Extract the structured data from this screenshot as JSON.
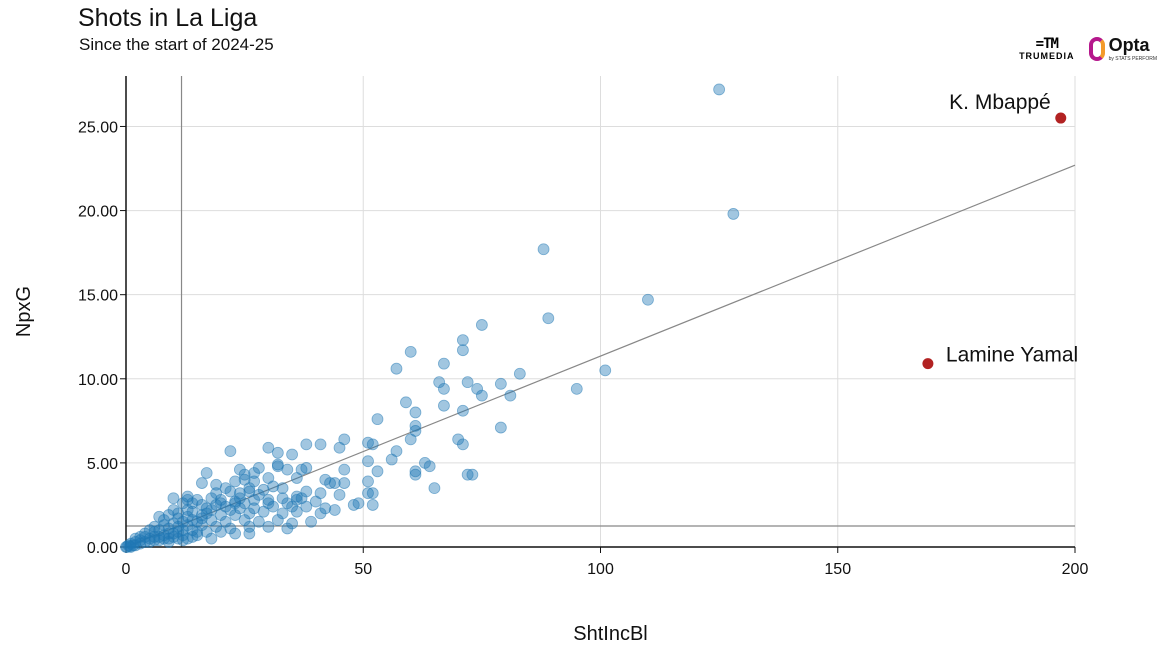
{
  "header": {
    "title": "Shots in La Liga",
    "subtitle": "Since the start of 2024-25"
  },
  "logos": {
    "trumedia_mark": "=TM",
    "trumedia_name": "TRUMEDIA",
    "opta_name": "Opta",
    "opta_sub": "by STATS PERFORM"
  },
  "colors": {
    "dots": "#1f77b4",
    "highlight": "#b22222",
    "line": "#888888"
  },
  "chart_data": {
    "type": "scatter",
    "title": "Shots in La Liga",
    "subtitle": "Since the start of 2024-25",
    "xlabel": "ShtIncBl",
    "ylabel": "NpxG",
    "xlim": [
      0,
      200
    ],
    "ylim": [
      0,
      28
    ],
    "xticks": [
      0,
      50,
      100,
      150,
      200
    ],
    "yticks": [
      0,
      5,
      10,
      15,
      20,
      25
    ],
    "ytick_labels": [
      "0.00",
      "5.00",
      "10.00",
      "15.00",
      "20.00",
      "25.00"
    ],
    "grid": true,
    "reference_lines": {
      "mean_x": 11.7,
      "mean_y": 1.25,
      "trend": {
        "x0": 0,
        "y0": 0,
        "x1": 200,
        "y1": 22.7
      }
    },
    "highlighted": [
      {
        "label": "K. Mbappé",
        "x": 197,
        "y": 25.5
      },
      {
        "label": "Lamine Yamal",
        "x": 169,
        "y": 10.9
      }
    ],
    "points": [
      [
        125,
        27.2
      ],
      [
        128,
        19.8
      ],
      [
        88,
        17.7
      ],
      [
        110,
        14.7
      ],
      [
        89,
        13.6
      ],
      [
        75,
        13.2
      ],
      [
        71,
        12.3
      ],
      [
        71,
        11.7
      ],
      [
        60,
        11.6
      ],
      [
        67,
        10.9
      ],
      [
        57,
        10.6
      ],
      [
        101,
        10.5
      ],
      [
        83,
        10.3
      ],
      [
        72,
        9.8
      ],
      [
        66,
        9.8
      ],
      [
        79,
        9.7
      ],
      [
        67,
        9.4
      ],
      [
        74,
        9.4
      ],
      [
        95,
        9.4
      ],
      [
        75,
        9.0
      ],
      [
        81,
        9.0
      ],
      [
        59,
        8.6
      ],
      [
        67,
        8.4
      ],
      [
        61,
        8.0
      ],
      [
        71,
        8.1
      ],
      [
        53,
        7.6
      ],
      [
        61,
        7.2
      ],
      [
        61,
        6.9
      ],
      [
        79,
        7.1
      ],
      [
        70,
        6.4
      ],
      [
        60,
        6.4
      ],
      [
        71,
        6.1
      ],
      [
        46,
        6.4
      ],
      [
        51,
        6.2
      ],
      [
        52,
        6.1
      ],
      [
        38,
        6.1
      ],
      [
        41,
        6.1
      ],
      [
        45,
        5.9
      ],
      [
        30,
        5.9
      ],
      [
        22,
        5.7
      ],
      [
        35,
        5.5
      ],
      [
        32,
        5.6
      ],
      [
        57,
        5.7
      ],
      [
        56,
        5.2
      ],
      [
        63,
        5.0
      ],
      [
        64,
        4.8
      ],
      [
        51,
        5.1
      ],
      [
        46,
        4.6
      ],
      [
        53,
        4.5
      ],
      [
        32,
        4.9
      ],
      [
        32,
        4.8
      ],
      [
        37,
        4.6
      ],
      [
        34,
        4.6
      ],
      [
        38,
        4.7
      ],
      [
        28,
        4.7
      ],
      [
        24,
        4.6
      ],
      [
        17,
        4.4
      ],
      [
        61,
        4.3
      ],
      [
        61,
        4.5
      ],
      [
        72,
        4.3
      ],
      [
        73,
        4.3
      ],
      [
        27,
        4.4
      ],
      [
        25,
        4.3
      ],
      [
        30,
        4.1
      ],
      [
        36,
        4.1
      ],
      [
        42,
        4.0
      ],
      [
        44,
        3.8
      ],
      [
        43,
        3.8
      ],
      [
        51,
        3.9
      ],
      [
        46,
        3.8
      ],
      [
        65,
        3.5
      ],
      [
        23,
        3.9
      ],
      [
        16,
        3.8
      ],
      [
        19,
        3.7
      ],
      [
        31,
        3.6
      ],
      [
        33,
        3.5
      ],
      [
        29,
        3.4
      ],
      [
        26,
        3.3
      ],
      [
        24,
        3.2
      ],
      [
        22,
        3.3
      ],
      [
        38,
        3.3
      ],
      [
        41,
        3.2
      ],
      [
        51,
        3.2
      ],
      [
        52,
        3.2
      ],
      [
        45,
        3.1
      ],
      [
        37,
        2.9
      ],
      [
        36,
        3.0
      ],
      [
        33,
        2.9
      ],
      [
        30,
        2.8
      ],
      [
        27,
        2.8
      ],
      [
        25,
        2.6
      ],
      [
        23,
        2.6
      ],
      [
        20,
        2.8
      ],
      [
        18,
        2.9
      ],
      [
        15,
        2.8
      ],
      [
        13,
        3.0
      ],
      [
        13,
        2.8
      ],
      [
        10,
        2.9
      ],
      [
        12,
        2.6
      ],
      [
        14,
        2.6
      ],
      [
        16,
        2.5
      ],
      [
        19,
        2.5
      ],
      [
        21,
        2.4
      ],
      [
        24,
        2.3
      ],
      [
        27,
        2.3
      ],
      [
        31,
        2.4
      ],
      [
        35,
        2.4
      ],
      [
        38,
        2.4
      ],
      [
        42,
        2.3
      ],
      [
        49,
        2.6
      ],
      [
        52,
        2.5
      ],
      [
        41,
        2.0
      ],
      [
        36,
        2.1
      ],
      [
        33,
        2.0
      ],
      [
        29,
        2.1
      ],
      [
        26,
        2.0
      ],
      [
        23,
        1.9
      ],
      [
        20,
        1.9
      ],
      [
        17,
        2.0
      ],
      [
        14,
        2.1
      ],
      [
        11,
        2.0
      ],
      [
        9,
        1.9
      ],
      [
        7,
        1.8
      ],
      [
        8,
        1.6
      ],
      [
        11,
        1.7
      ],
      [
        13,
        1.8
      ],
      [
        16,
        1.7
      ],
      [
        18,
        1.6
      ],
      [
        21,
        1.5
      ],
      [
        25,
        1.6
      ],
      [
        28,
        1.5
      ],
      [
        32,
        1.6
      ],
      [
        35,
        1.4
      ],
      [
        39,
        1.5
      ],
      [
        34,
        1.1
      ],
      [
        30,
        1.2
      ],
      [
        26,
        1.2
      ],
      [
        22,
        1.1
      ],
      [
        19,
        1.2
      ],
      [
        16,
        1.3
      ],
      [
        13,
        1.3
      ],
      [
        10,
        1.4
      ],
      [
        8,
        1.3
      ],
      [
        6,
        1.2
      ],
      [
        5,
        1.0
      ],
      [
        7,
        1.0
      ],
      [
        9,
        1.1
      ],
      [
        12,
        1.0
      ],
      [
        14,
        1.0
      ],
      [
        17,
        0.9
      ],
      [
        20,
        0.9
      ],
      [
        23,
        0.8
      ],
      [
        26,
        0.8
      ],
      [
        18,
        0.5
      ],
      [
        15,
        0.7
      ],
      [
        12,
        0.7
      ],
      [
        10,
        0.8
      ],
      [
        8,
        0.7
      ],
      [
        6,
        0.6
      ],
      [
        5,
        0.5
      ],
      [
        4,
        0.6
      ],
      [
        3,
        0.4
      ],
      [
        2,
        0.3
      ],
      [
        1,
        0.2
      ],
      [
        0.5,
        0.1
      ],
      [
        1,
        0.0
      ],
      [
        2,
        0.1
      ],
      [
        3,
        0.2
      ],
      [
        4,
        0.3
      ],
      [
        5,
        0.3
      ],
      [
        6,
        0.4
      ],
      [
        7,
        0.4
      ],
      [
        8,
        0.5
      ],
      [
        9,
        0.5
      ],
      [
        10,
        0.6
      ],
      [
        11,
        0.5
      ],
      [
        12,
        0.4
      ],
      [
        13,
        0.5
      ],
      [
        14,
        0.6
      ],
      [
        15,
        0.9
      ],
      [
        3,
        0.6
      ],
      [
        4,
        0.8
      ],
      [
        2,
        0.5
      ],
      [
        6,
        0.9
      ],
      [
        7,
        0.6
      ],
      [
        9,
        0.8
      ],
      [
        11,
        1.2
      ],
      [
        12,
        1.5
      ],
      [
        14,
        1.6
      ],
      [
        16,
        1.9
      ],
      [
        18,
        2.2
      ],
      [
        20,
        2.6
      ],
      [
        22,
        2.2
      ],
      [
        24,
        2.9
      ],
      [
        26,
        3.5
      ],
      [
        28,
        3.1
      ],
      [
        30,
        2.6
      ],
      [
        34,
        2.6
      ],
      [
        36,
        2.8
      ],
      [
        40,
        2.7
      ],
      [
        44,
        2.2
      ],
      [
        48,
        2.5
      ],
      [
        19,
        3.2
      ],
      [
        21,
        3.5
      ],
      [
        25,
        4.0
      ],
      [
        27,
        3.9
      ],
      [
        23,
        2.7
      ],
      [
        17,
        2.3
      ],
      [
        13,
        2.2
      ],
      [
        10,
        2.2
      ],
      [
        15,
        1.5
      ],
      [
        11,
        0.9
      ],
      [
        9,
        0.3
      ],
      [
        0,
        0
      ],
      [
        0.2,
        0
      ],
      [
        0.8,
        0.05
      ],
      [
        1.5,
        0.1
      ]
    ]
  },
  "axis_labels": {
    "x": "ShtIncBl",
    "y": "NpxG"
  }
}
